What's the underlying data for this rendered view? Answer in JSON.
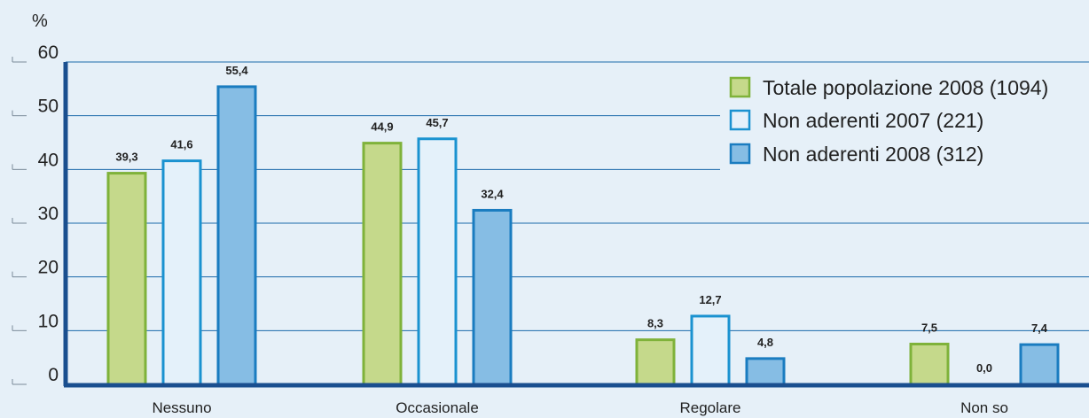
{
  "chart_data": {
    "type": "bar",
    "ylabel": "%",
    "ylim": [
      0,
      60
    ],
    "yticks": [
      "0",
      "10",
      "20",
      "30",
      "40",
      "50",
      "60"
    ],
    "grid": true,
    "legend_position": "top-right",
    "categories": [
      "Nessuno",
      "Occasionale",
      "Regolare",
      "Non so"
    ],
    "series": [
      {
        "name": "Totale popolazione 2008 (1094)",
        "values": [
          39.3,
          44.9,
          8.3,
          7.5
        ],
        "labels": [
          "39,3",
          "44,9",
          "8,3",
          "7,5"
        ],
        "fill": "#c5d98b",
        "stroke": "#7fb23a"
      },
      {
        "name": "Non aderenti 2007 (221)",
        "values": [
          41.6,
          45.7,
          12.7,
          0.0
        ],
        "labels": [
          "41,6",
          "45,7",
          "12,7",
          "0,0"
        ],
        "fill": "#e4f1fa",
        "stroke": "#1a92d0"
      },
      {
        "name": "Non aderenti 2008 (312)",
        "values": [
          55.4,
          32.4,
          4.8,
          7.4
        ],
        "labels": [
          "55,4",
          "32,4",
          "4,8",
          "7,4"
        ],
        "fill": "#86bde4",
        "stroke": "#1a7cc0"
      }
    ]
  },
  "colors": {
    "background": "#e6f0f8",
    "gridline": "#1a6aaa",
    "axis": "#1a4f8f",
    "text": "#222222"
  }
}
